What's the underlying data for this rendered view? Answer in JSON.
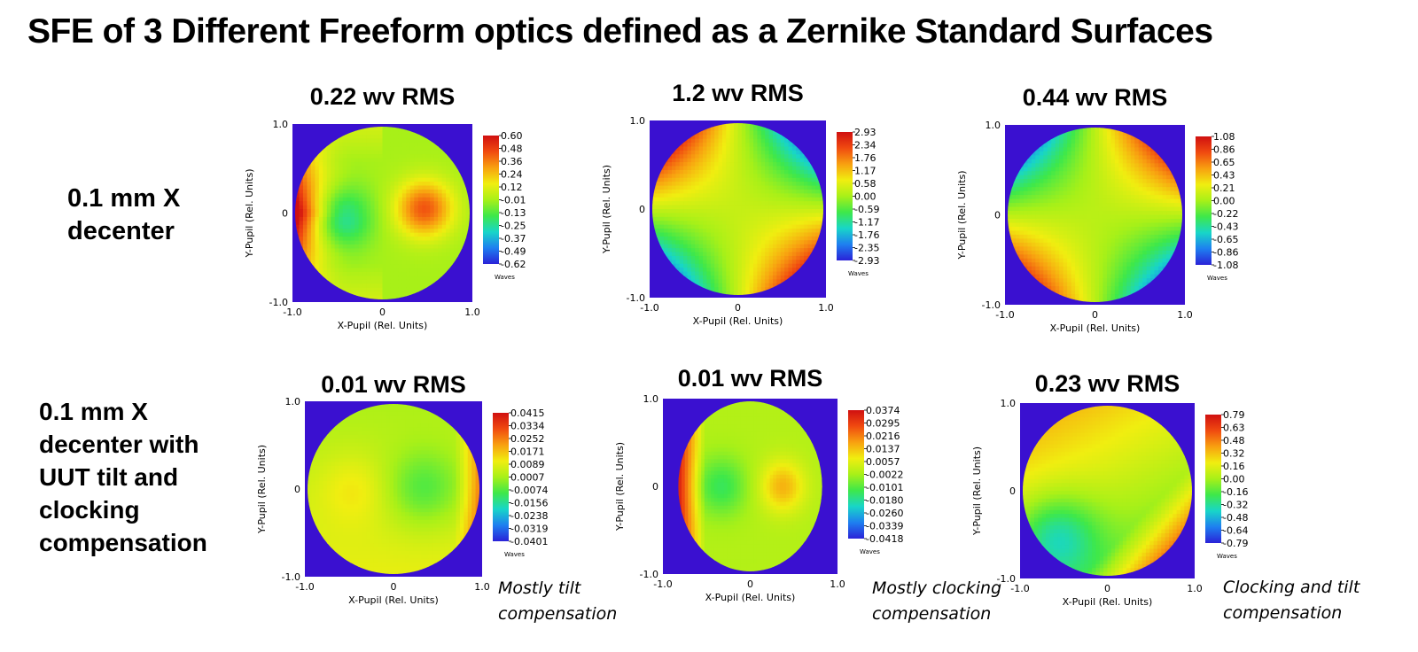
{
  "title": "SFE of 3 Different Freeform optics defined as a Zernike Standard Surfaces",
  "row_labels": {
    "row1": [
      "0.1 mm X",
      "decenter"
    ],
    "row2": [
      "0.1 mm X",
      "decenter with",
      "UUT tilt and",
      "clocking",
      "compensation"
    ]
  },
  "notes": [
    [
      "Mostly tilt",
      "compensation"
    ],
    [
      "Mostly clocking",
      "compensation"
    ],
    [
      "Clocking and tilt",
      "compensation"
    ]
  ],
  "colors": {
    "background": "#3a10d0",
    "colormap": [
      "#2a22d8",
      "#1e7ff0",
      "#18d6c8",
      "#3ee84a",
      "#a8f018",
      "#f0ee10",
      "#f8a010",
      "#f04a10",
      "#d01010"
    ]
  },
  "chart_data": [
    {
      "type": "heatmap",
      "title": "0.22 wv RMS",
      "xlabel": "X-Pupil (Rel. Units)",
      "ylabel": "Y-Pupil (Rel. Units)",
      "xticks": [
        "-1.0",
        "0",
        "1.0"
      ],
      "yticks": [
        "1.0",
        "0",
        "-1.0"
      ],
      "xlim": [
        -1,
        1
      ],
      "ylim": [
        -1,
        1
      ],
      "colorbar_label": "Waves",
      "colorbar_ticks": [
        "0.60",
        "0.48",
        "0.36",
        "0.24",
        "0.12",
        "-0.01",
        "-0.13",
        "-0.25",
        "-0.37",
        "-0.49",
        "-0.62"
      ],
      "value_range": [
        -0.62,
        0.6
      ],
      "pattern": "coma_x"
    },
    {
      "type": "heatmap",
      "title": "1.2 wv RMS",
      "xlabel": "X-Pupil (Rel. Units)",
      "ylabel": "Y-Pupil (Rel. Units)",
      "xticks": [
        "-1.0",
        "0",
        "1.0"
      ],
      "yticks": [
        "1.0",
        "0",
        "-1.0"
      ],
      "xlim": [
        -1,
        1
      ],
      "ylim": [
        -1,
        1
      ],
      "colorbar_label": "Waves",
      "colorbar_ticks": [
        "2.93",
        "2.34",
        "1.76",
        "1.17",
        "0.58",
        "0.00",
        "-0.59",
        "-1.17",
        "-1.76",
        "-2.35",
        "-2.93"
      ],
      "value_range": [
        -2.93,
        2.93
      ],
      "pattern": "quad_neg"
    },
    {
      "type": "heatmap",
      "title": "0.44 wv RMS",
      "xlabel": "X-Pupil (Rel. Units)",
      "ylabel": "Y-Pupil (Rel. Units)",
      "xticks": [
        "-1.0",
        "0",
        "1.0"
      ],
      "yticks": [
        "1.0",
        "0",
        "-1.0"
      ],
      "xlim": [
        -1,
        1
      ],
      "ylim": [
        -1,
        1
      ],
      "colorbar_label": "Waves",
      "colorbar_ticks": [
        "1.08",
        "0.86",
        "0.65",
        "0.43",
        "0.21",
        "0.00",
        "-0.22",
        "-0.43",
        "-0.65",
        "-0.86",
        "-1.08"
      ],
      "value_range": [
        -1.08,
        1.08
      ],
      "pattern": "quad_pos"
    },
    {
      "type": "heatmap",
      "title": "0.01 wv RMS",
      "xlabel": "X-Pupil (Rel. Units)",
      "ylabel": "Y-Pupil (Rel. Units)",
      "xticks": [
        "-1.0",
        "0",
        "1.0"
      ],
      "yticks": [
        "1.0",
        "0",
        "-1.0"
      ],
      "xlim": [
        -1,
        1
      ],
      "ylim": [
        -1,
        1
      ],
      "colorbar_label": "Waves",
      "colorbar_ticks": [
        "0.0415",
        "0.0334",
        "0.0252",
        "0.0171",
        "0.0089",
        "0.0007",
        "-0.0074",
        "-0.0156",
        "-0.0238",
        "-0.0319",
        "-0.0401"
      ],
      "value_range": [
        -0.0401,
        0.0415
      ],
      "pattern": "residual_tilt"
    },
    {
      "type": "heatmap",
      "title": "0.01 wv RMS",
      "xlabel": "X-Pupil (Rel. Units)",
      "ylabel": "Y-Pupil (Rel. Units)",
      "xticks": [
        "-1.0",
        "0",
        "1.0"
      ],
      "yticks": [
        "1.0",
        "0",
        "-1.0"
      ],
      "xlim": [
        -1,
        1
      ],
      "ylim": [
        -1,
        1
      ],
      "colorbar_label": "Waves",
      "colorbar_ticks": [
        "0.0374",
        "0.0295",
        "0.0216",
        "0.0137",
        "0.0057",
        "-0.0022",
        "-0.0101",
        "-0.0180",
        "-0.0260",
        "-0.0339",
        "-0.0418"
      ],
      "value_range": [
        -0.0418,
        0.0374
      ],
      "pattern": "coma_x_weak"
    },
    {
      "type": "heatmap",
      "title": "0.23 wv RMS",
      "xlabel": "X-Pupil (Rel. Units)",
      "ylabel": "Y-Pupil (Rel. Units)",
      "xticks": [
        "-1.0",
        "0",
        "1.0"
      ],
      "yticks": [
        "1.0",
        "0",
        "-1.0"
      ],
      "xlim": [
        -1,
        1
      ],
      "ylim": [
        -1,
        1
      ],
      "colorbar_label": "Waves",
      "colorbar_ticks": [
        "0.79",
        "0.63",
        "0.48",
        "0.32",
        "0.16",
        "0.00",
        "-0.16",
        "-0.32",
        "-0.48",
        "-0.64",
        "-0.79"
      ],
      "value_range": [
        -0.79,
        0.79
      ],
      "pattern": "diag"
    }
  ]
}
